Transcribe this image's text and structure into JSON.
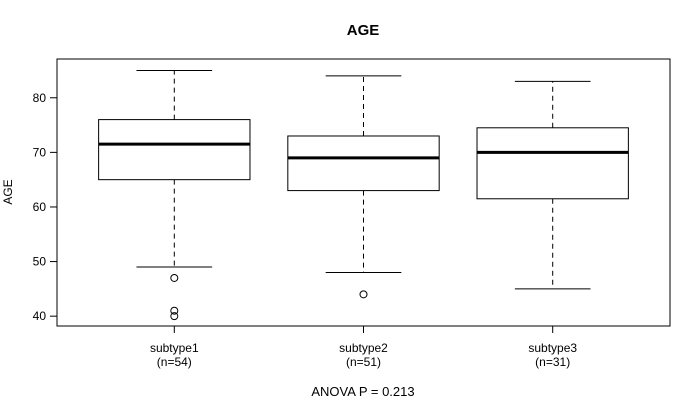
{
  "figure": {
    "title": "AGE",
    "y_axis_label": "AGE",
    "footer": "ANOVA P = 0.213"
  },
  "chart_data": {
    "type": "boxplot",
    "title": "AGE",
    "ylabel": "AGE",
    "xlabel": "",
    "annotation": "ANOVA P = 0.213",
    "categories": [
      "subtype1",
      "subtype2",
      "subtype3"
    ],
    "yticks": [
      40,
      50,
      60,
      70,
      80
    ],
    "ylim": [
      38.2,
      87.1
    ],
    "grid": false,
    "legend": "none",
    "groups": [
      {
        "label": "subtype1",
        "sublabel": "(n=54)",
        "n": 54,
        "whisker_low": 49,
        "q1": 65,
        "median": 71.5,
        "q3": 76,
        "whisker_high": 85,
        "outliers": [
          47,
          41,
          40
        ]
      },
      {
        "label": "subtype2",
        "sublabel": "(n=51)",
        "n": 51,
        "whisker_low": 48,
        "q1": 63,
        "median": 69,
        "q3": 73,
        "whisker_high": 84,
        "outliers": [
          44
        ]
      },
      {
        "label": "subtype3",
        "sublabel": "(n=31)",
        "n": 31,
        "whisker_low": 45,
        "q1": 61.5,
        "median": 70,
        "q3": 74.5,
        "whisker_high": 83,
        "outliers": []
      }
    ],
    "colors": {
      "stroke": "#000000",
      "median": "#000000",
      "background": "#ffffff"
    }
  }
}
